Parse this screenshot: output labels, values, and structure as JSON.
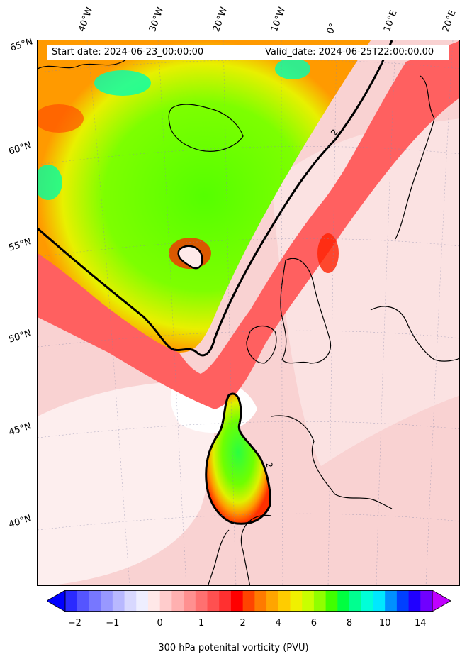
{
  "map": {
    "start_date": "Start date: 2024-06-23_00:00:00",
    "valid_date": "Valid_date: 2024-06-25T22:00:00.00",
    "contour_label": "2",
    "lon_labels": [
      "40°W",
      "30°W",
      "20°W",
      "10°W",
      "0°",
      "10°E",
      "20°E"
    ],
    "lat_labels": [
      "65°N",
      "60°N",
      "55°N",
      "50°N",
      "45°N",
      "40°N"
    ],
    "colors": {
      "background_pink": "#f7c9c9",
      "red": "#ff2020",
      "orange": "#ff9a00",
      "yellow": "#f5f500",
      "green": "#55ff00",
      "cyan": "#00ffd0",
      "contour": "#000000"
    }
  },
  "colorbar": {
    "ticks": [
      "−2",
      "−1",
      "0",
      "1",
      "2",
      "4",
      "6",
      "8",
      "10",
      "14"
    ],
    "label": "300 hPa potenital vorticity (PVU)",
    "colors": [
      "#0000ff",
      "#2a2aff",
      "#5555ff",
      "#7777ff",
      "#9898ff",
      "#b8b8ff",
      "#d8d8ff",
      "#eeeeff",
      "#ffe8e8",
      "#ffcccc",
      "#ffb0b0",
      "#ff9090",
      "#ff7070",
      "#ff5050",
      "#ff3030",
      "#ff0000",
      "#ff4400",
      "#ff7a00",
      "#ffa500",
      "#ffcc00",
      "#f0f000",
      "#c8ff00",
      "#90ff00",
      "#40ff00",
      "#00ff40",
      "#00ff90",
      "#00ffd8",
      "#00e8ff",
      "#0090ff",
      "#0040ff",
      "#2000ff",
      "#7000ff",
      "#c000ff"
    ]
  }
}
